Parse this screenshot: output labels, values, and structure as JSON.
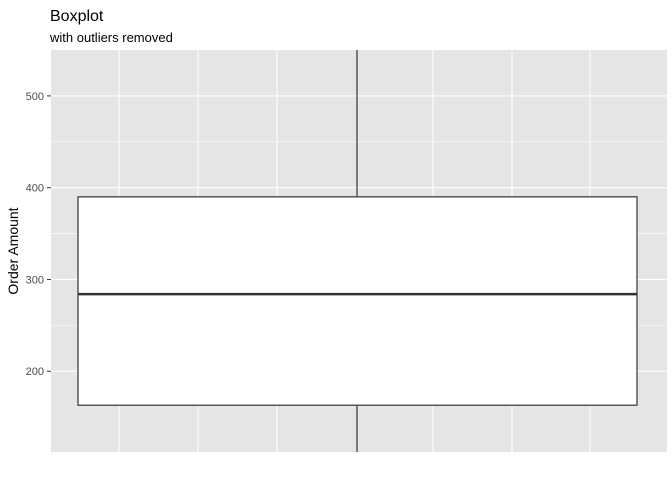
{
  "chart_data": {
    "type": "boxplot",
    "title": "Boxplot",
    "subtitle": "with outliers removed",
    "xlabel": "",
    "ylabel": "Order Amount",
    "ylim": [
      112,
      550
    ],
    "yticks": [
      200,
      300,
      400,
      500
    ],
    "box": {
      "min": 112,
      "q1": 163,
      "median": 284,
      "q3": 390,
      "max": 550
    },
    "grid": true,
    "legend": "none",
    "colors": {
      "panel_bg": "#E5E5E5",
      "grid_major": "#FFFFFF",
      "box_fill": "#FFFFFF",
      "box_stroke": "#333333",
      "tick_text": "#4D4D4D",
      "title_text": "#000000"
    }
  }
}
